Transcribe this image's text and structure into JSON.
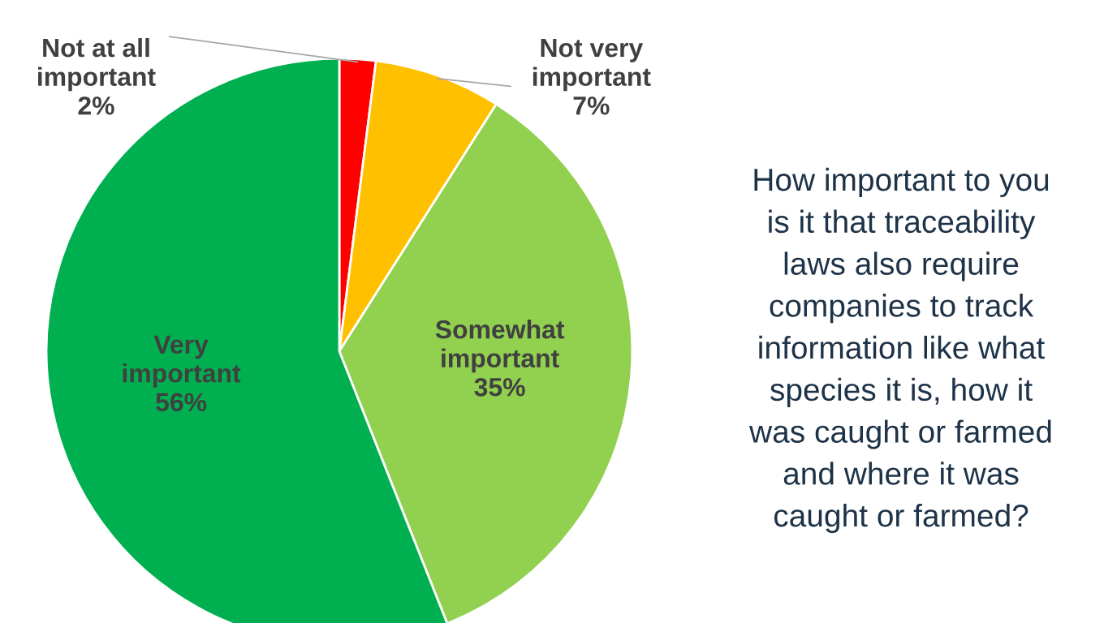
{
  "chart_data": {
    "type": "pie",
    "title": "How important to you\nis it that traceability\nlaws also require\ncompanies to track\ninformation like what\nspecies it is, how it\nwas caught or farmed\nand where it was\ncaught or farmed?",
    "categories": [
      "Not at all important",
      "Not very important",
      "Somewhat important",
      "Very important"
    ],
    "values": [
      2,
      7,
      35,
      56
    ],
    "value_labels": [
      "2%",
      "7%",
      "35%",
      "56%"
    ],
    "colors": [
      "#ff0000",
      "#ffc000",
      "#92d050",
      "#00b050"
    ],
    "legend": false
  }
}
